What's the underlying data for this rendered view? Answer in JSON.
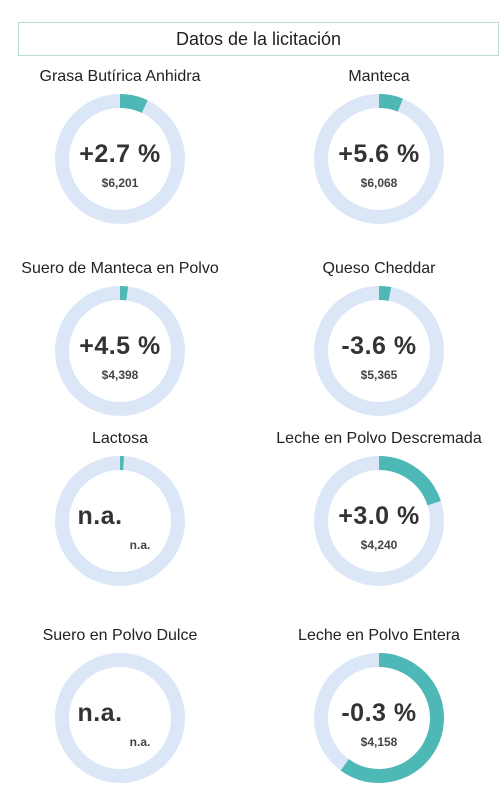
{
  "header": {
    "title": "Datos de la licitación"
  },
  "colors": {
    "track": "#dbe7f6",
    "progress": "#4db8b6"
  },
  "chart_data": {
    "type": "donut",
    "title": "Datos de la licitación",
    "items": [
      {
        "name": "Grasa Butírica Anhidra",
        "change_label": "+2.7 %",
        "price_label": "$6,201",
        "change_value": 2.7,
        "price_value": 6201,
        "ring_fraction": 0.07
      },
      {
        "name": "Manteca",
        "change_label": "+5.6 %",
        "price_label": "$6,068",
        "change_value": 5.6,
        "price_value": 6068,
        "ring_fraction": 0.06
      },
      {
        "name": "Suero de Manteca en Polvo",
        "change_label": "+4.5 %",
        "price_label": "$4,398",
        "change_value": 4.5,
        "price_value": 4398,
        "ring_fraction": 0.02
      },
      {
        "name": "Queso Cheddar",
        "change_label": "-3.6 %",
        "price_label": "$5,365",
        "change_value": -3.6,
        "price_value": 5365,
        "ring_fraction": 0.03
      },
      {
        "name": "Lactosa",
        "change_label": "n.a.",
        "price_label": "n.a.",
        "change_value": null,
        "price_value": null,
        "ring_fraction": 0.01
      },
      {
        "name": "Leche en Polvo Descremada",
        "change_label": "+3.0 %",
        "price_label": "$4,240",
        "change_value": 3.0,
        "price_value": 4240,
        "ring_fraction": 0.2
      },
      {
        "name": "Suero en Polvo Dulce",
        "change_label": "n.a.",
        "price_label": "n.a.",
        "change_value": null,
        "price_value": null,
        "ring_fraction": 0.0
      },
      {
        "name": "Leche en Polvo Entera",
        "change_label": "-0.3 %",
        "price_label": "$4,158",
        "change_value": -0.3,
        "price_value": 4158,
        "ring_fraction": 0.6
      }
    ]
  }
}
